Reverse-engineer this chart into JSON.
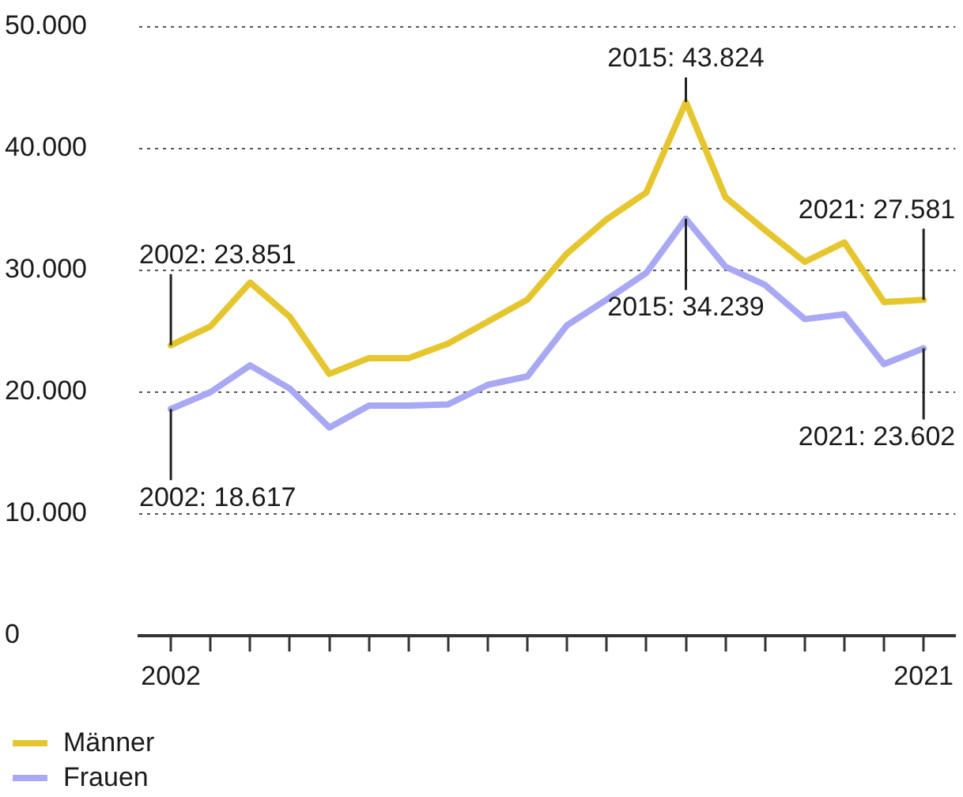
{
  "chart_data": {
    "type": "line",
    "x": [
      2002,
      2003,
      2004,
      2005,
      2006,
      2007,
      2008,
      2009,
      2010,
      2011,
      2012,
      2013,
      2014,
      2015,
      2016,
      2017,
      2018,
      2019,
      2020,
      2021
    ],
    "xlim": [
      2001.2,
      2021.8
    ],
    "xticks": [
      2002,
      {
        "value": 2003,
        "label": null
      },
      {
        "value": 2004,
        "label": null
      },
      {
        "value": 2005,
        "label": null
      },
      {
        "value": 2006,
        "label": null
      },
      {
        "value": 2007,
        "label": null
      },
      {
        "value": 2008,
        "label": null
      },
      {
        "value": 2009,
        "label": null
      },
      {
        "value": 2010,
        "label": null
      },
      {
        "value": 2011,
        "label": null
      },
      {
        "value": 2012,
        "label": null
      },
      {
        "value": 2013,
        "label": null
      },
      {
        "value": 2014,
        "label": null
      },
      {
        "value": 2015,
        "label": null
      },
      {
        "value": 2016,
        "label": null
      },
      {
        "value": 2017,
        "label": null
      },
      {
        "value": 2018,
        "label": null
      },
      {
        "value": 2019,
        "label": null
      },
      {
        "value": 2020,
        "label": null
      },
      2021
    ],
    "ylim": [
      0,
      50000
    ],
    "yticks": [
      0,
      {
        "value": 10000,
        "label": "10.000"
      },
      {
        "value": 20000,
        "label": "20.000"
      },
      {
        "value": 30000,
        "label": "30.000"
      },
      {
        "value": 40000,
        "label": "40.000"
      },
      {
        "value": 50000,
        "label": "50.000"
      }
    ],
    "grid": "y",
    "legend": "bottom left",
    "series": [
      {
        "name": "Männer",
        "color": "#e6c62f",
        "values": [
          23851,
          25400,
          29000,
          26200,
          21500,
          22800,
          22800,
          24000,
          25800,
          27600,
          31400,
          34200,
          36400,
          43824,
          36000,
          33300,
          30700,
          32300,
          27400,
          27581
        ],
        "value_labels": [
          "2002: 23.851",
          null,
          null,
          null,
          null,
          null,
          null,
          null,
          null,
          null,
          null,
          null,
          null,
          "2015: 43.824",
          null,
          null,
          null,
          null,
          null,
          "2021: 27.581"
        ]
      },
      {
        "name": "Frauen",
        "color": "#a8a8f5",
        "values": [
          18617,
          20000,
          22200,
          20300,
          17100,
          18900,
          18900,
          19000,
          20600,
          21300,
          25500,
          27600,
          29800,
          34239,
          30300,
          28800,
          26000,
          26400,
          22300,
          23602
        ],
        "value_labels": [
          "2002: 18.617",
          null,
          null,
          null,
          null,
          null,
          null,
          null,
          null,
          null,
          null,
          null,
          null,
          "2015: 34.239",
          null,
          null,
          null,
          null,
          null,
          "2021: 23.602"
        ]
      }
    ]
  }
}
